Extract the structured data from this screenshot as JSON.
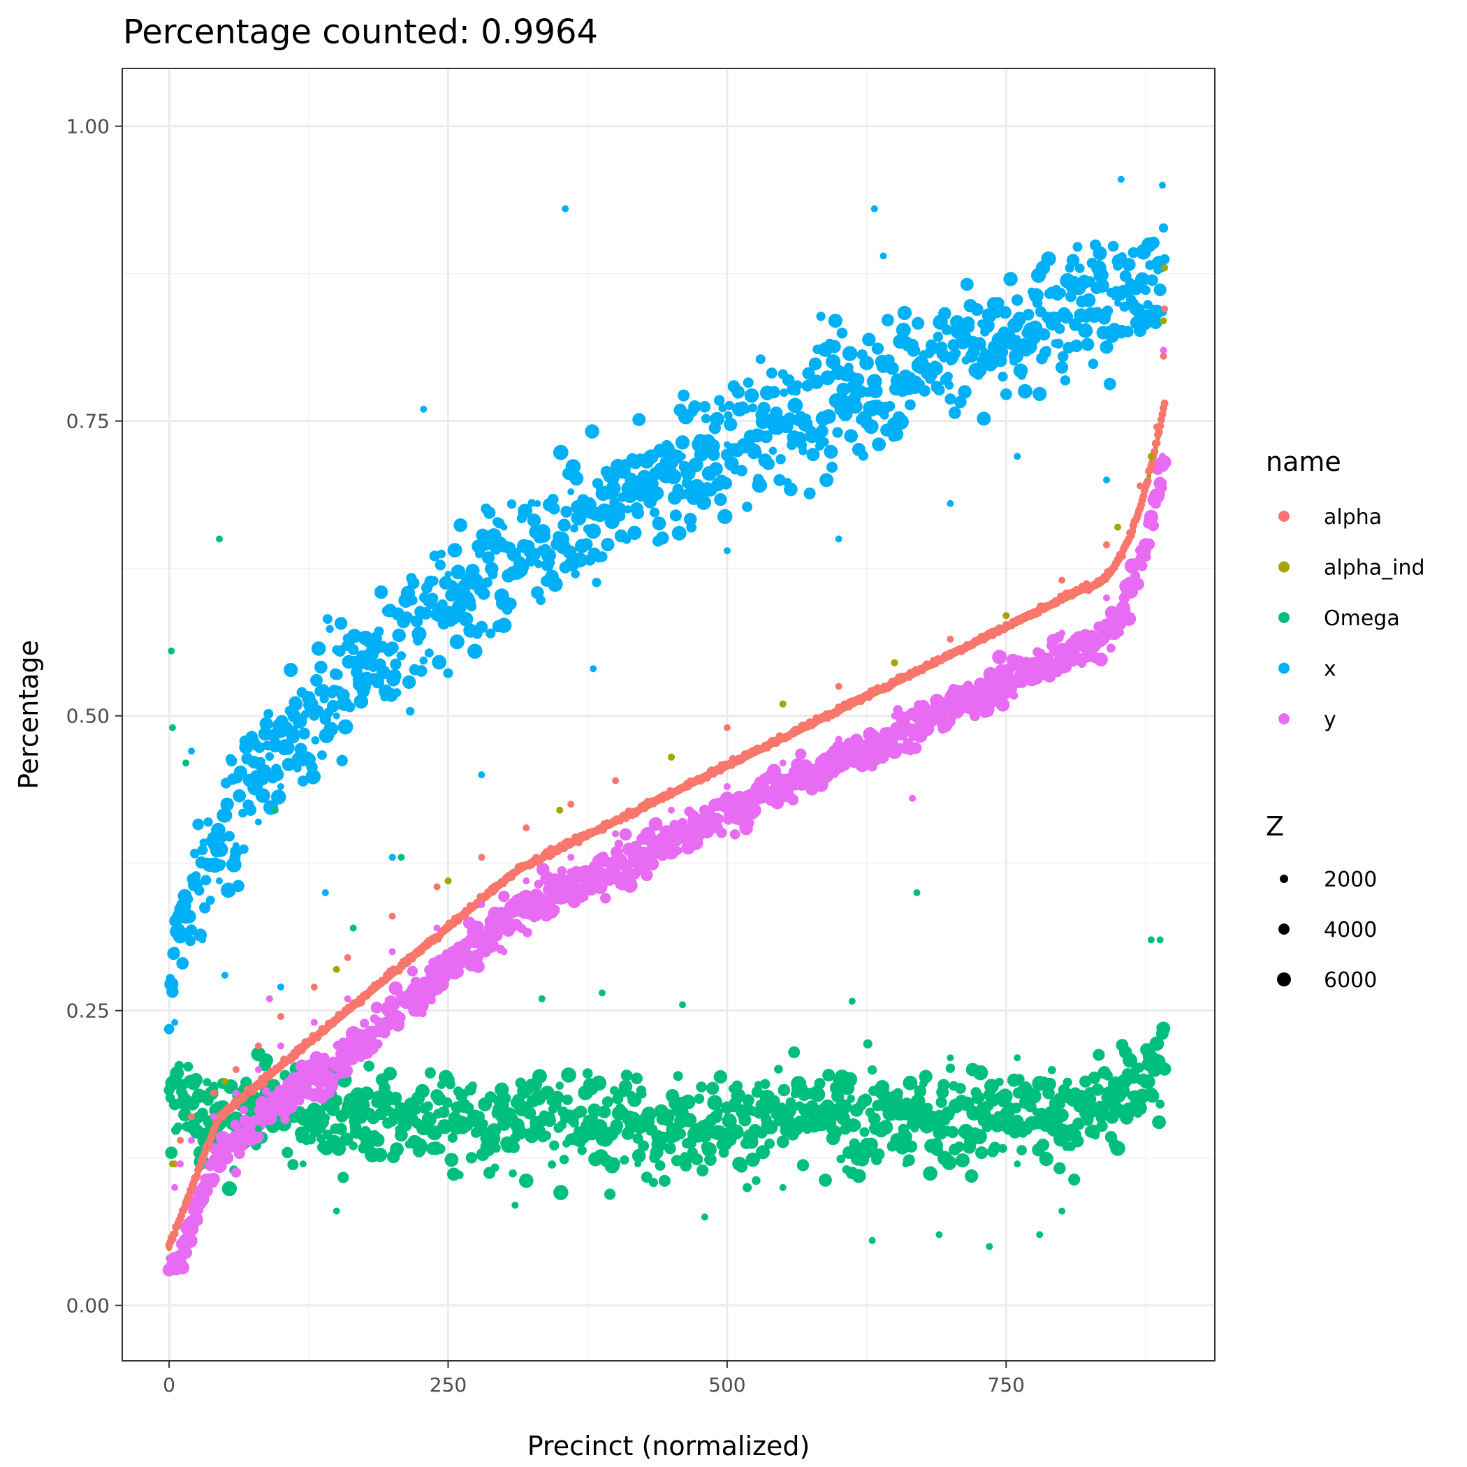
{
  "chart_data": {
    "type": "scatter",
    "title": "Percentage counted: 0.9964",
    "xlabel": "Precinct (normalized)",
    "ylabel": "Percentage",
    "xlim": [
      -42,
      937
    ],
    "ylim": [
      -0.047,
      1.049
    ],
    "xticks": [
      0,
      250,
      500,
      750
    ],
    "xtick_labels": [
      "0",
      "250",
      "500",
      "750"
    ],
    "yticks": [
      0.0,
      0.25,
      0.5,
      0.75,
      1.0
    ],
    "ytick_labels": [
      "0.00",
      "0.25",
      "0.50",
      "0.75",
      "1.00"
    ],
    "grid": true,
    "legend_color_title": "name",
    "legend_size_title": "Z",
    "legend_placement": "right",
    "n_precincts": 893,
    "series": [
      {
        "name": "alpha",
        "color": "#F8766D",
        "points": [
          [
            0,
            0.05
          ],
          [
            5,
            0.12
          ],
          [
            10,
            0.14
          ],
          [
            20,
            0.16
          ],
          [
            40,
            0.18
          ],
          [
            60,
            0.2
          ],
          [
            80,
            0.22
          ],
          [
            100,
            0.245
          ],
          [
            130,
            0.27
          ],
          [
            160,
            0.295
          ],
          [
            200,
            0.33
          ],
          [
            240,
            0.355
          ],
          [
            280,
            0.38
          ],
          [
            320,
            0.405
          ],
          [
            360,
            0.425
          ],
          [
            400,
            0.445
          ],
          [
            450,
            0.465
          ],
          [
            500,
            0.49
          ],
          [
            550,
            0.51
          ],
          [
            600,
            0.525
          ],
          [
            650,
            0.545
          ],
          [
            700,
            0.565
          ],
          [
            750,
            0.585
          ],
          [
            800,
            0.615
          ],
          [
            840,
            0.645
          ],
          [
            870,
            0.695
          ],
          [
            885,
            0.745
          ],
          [
            891,
            0.805
          ],
          [
            892,
            0.845
          ]
        ]
      },
      {
        "name": "alpha_ind",
        "color": "#A3A500",
        "points": [
          [
            3,
            0.12
          ],
          [
            50,
            0.19
          ],
          [
            150,
            0.285
          ],
          [
            250,
            0.36
          ],
          [
            350,
            0.42
          ],
          [
            450,
            0.465
          ],
          [
            550,
            0.51
          ],
          [
            650,
            0.545
          ],
          [
            750,
            0.585
          ],
          [
            850,
            0.66
          ],
          [
            880,
            0.72
          ],
          [
            891,
            0.835
          ],
          [
            892,
            0.88
          ]
        ]
      },
      {
        "name": "Omega",
        "color": "#00BF7D",
        "points": [
          [
            2,
            0.555
          ],
          [
            3,
            0.49
          ],
          [
            15,
            0.46
          ],
          [
            45,
            0.65
          ],
          [
            95,
            0.42
          ],
          [
            165,
            0.32
          ],
          [
            208,
            0.38
          ],
          [
            334,
            0.26
          ],
          [
            388,
            0.265
          ],
          [
            460,
            0.255
          ],
          [
            612,
            0.258
          ],
          [
            670,
            0.35
          ],
          [
            700,
            0.21
          ],
          [
            760,
            0.21
          ],
          [
            880,
            0.31
          ],
          [
            888,
            0.31
          ],
          [
            80,
            0.15
          ],
          [
            200,
            0.16
          ],
          [
            300,
            0.155
          ],
          [
            400,
            0.15
          ],
          [
            500,
            0.16
          ],
          [
            600,
            0.17
          ],
          [
            700,
            0.16
          ],
          [
            800,
            0.17
          ],
          [
            870,
            0.19
          ],
          [
            150,
            0.08
          ],
          [
            310,
            0.085
          ],
          [
            480,
            0.075
          ],
          [
            630,
            0.055
          ],
          [
            690,
            0.06
          ],
          [
            735,
            0.05
          ],
          [
            780,
            0.06
          ],
          [
            800,
            0.08
          ],
          [
            120,
            0.12
          ],
          [
            260,
            0.11
          ],
          [
            420,
            0.12
          ],
          [
            550,
            0.1
          ],
          [
            660,
            0.12
          ],
          [
            760,
            0.12
          ],
          [
            850,
            0.13
          ]
        ]
      },
      {
        "name": "x",
        "color": "#00B0F6",
        "points": [
          [
            5,
            0.24
          ],
          [
            10,
            0.29
          ],
          [
            20,
            0.33
          ],
          [
            30,
            0.31
          ],
          [
            45,
            0.36
          ],
          [
            60,
            0.39
          ],
          [
            80,
            0.41
          ],
          [
            100,
            0.44
          ],
          [
            120,
            0.46
          ],
          [
            150,
            0.5
          ],
          [
            180,
            0.53
          ],
          [
            200,
            0.56
          ],
          [
            230,
            0.6
          ],
          [
            250,
            0.62
          ],
          [
            280,
            0.64
          ],
          [
            300,
            0.66
          ],
          [
            330,
            0.68
          ],
          [
            360,
            0.69
          ],
          [
            400,
            0.7
          ],
          [
            430,
            0.7
          ],
          [
            460,
            0.72
          ],
          [
            500,
            0.73
          ],
          [
            530,
            0.74
          ],
          [
            560,
            0.75
          ],
          [
            600,
            0.77
          ],
          [
            630,
            0.78
          ],
          [
            660,
            0.79
          ],
          [
            700,
            0.8
          ],
          [
            730,
            0.81
          ],
          [
            760,
            0.82
          ],
          [
            790,
            0.83
          ],
          [
            820,
            0.84
          ],
          [
            850,
            0.85
          ],
          [
            870,
            0.87
          ],
          [
            885,
            0.88
          ],
          [
            228,
            0.76
          ],
          [
            355,
            0.93
          ],
          [
            632,
            0.93
          ],
          [
            853,
            0.955
          ],
          [
            890,
            0.95
          ],
          [
            640,
            0.89
          ],
          [
            760,
            0.72
          ],
          [
            700,
            0.68
          ],
          [
            600,
            0.65
          ],
          [
            500,
            0.64
          ],
          [
            380,
            0.54
          ],
          [
            280,
            0.45
          ],
          [
            200,
            0.38
          ],
          [
            140,
            0.35
          ],
          [
            100,
            0.27
          ],
          [
            50,
            0.28
          ],
          [
            20,
            0.47
          ],
          [
            840,
            0.7
          ],
          [
            780,
            0.88
          ]
        ]
      },
      {
        "name": "y",
        "color": "#E76BF3",
        "points": [
          [
            0,
            0.04
          ],
          [
            5,
            0.1
          ],
          [
            10,
            0.12
          ],
          [
            20,
            0.14
          ],
          [
            40,
            0.16
          ],
          [
            60,
            0.18
          ],
          [
            80,
            0.2
          ],
          [
            100,
            0.22
          ],
          [
            130,
            0.24
          ],
          [
            160,
            0.26
          ],
          [
            200,
            0.3
          ],
          [
            240,
            0.32
          ],
          [
            280,
            0.34
          ],
          [
            320,
            0.36
          ],
          [
            360,
            0.38
          ],
          [
            400,
            0.4
          ],
          [
            450,
            0.42
          ],
          [
            500,
            0.44
          ],
          [
            550,
            0.46
          ],
          [
            600,
            0.48
          ],
          [
            650,
            0.5
          ],
          [
            700,
            0.52
          ],
          [
            750,
            0.54
          ],
          [
            800,
            0.57
          ],
          [
            840,
            0.6
          ],
          [
            870,
            0.64
          ],
          [
            885,
            0.68
          ],
          [
            891,
            0.71
          ],
          [
            891,
            0.81
          ],
          [
            890,
            0.72
          ],
          [
            20,
            0.08
          ],
          [
            90,
            0.26
          ],
          [
            666,
            0.43
          ],
          [
            500,
            0.42
          ],
          [
            300,
            0.3
          ]
        ]
      }
    ],
    "size_legend": [
      {
        "label": "2000",
        "value": 2000
      },
      {
        "label": "4000",
        "value": 4000
      },
      {
        "label": "6000",
        "value": 6000
      }
    ]
  }
}
